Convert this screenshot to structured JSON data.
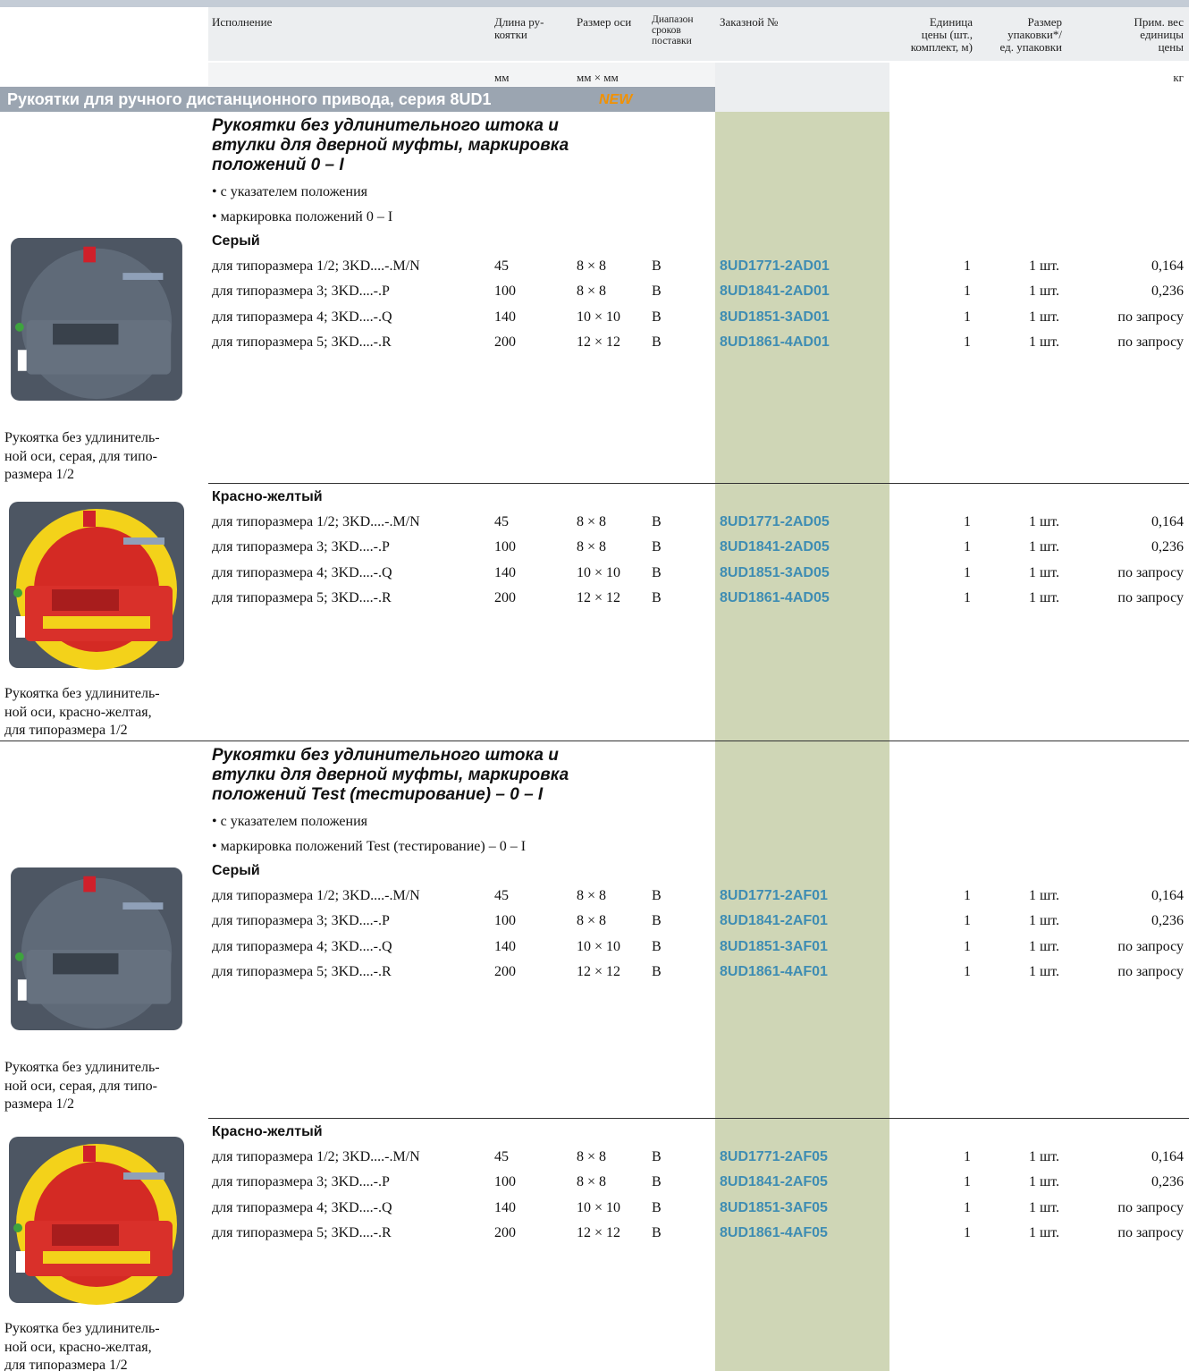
{
  "header": {
    "columns": [
      {
        "lines": [
          "Исполнение"
        ]
      },
      {
        "lines": [
          "Длина ру-",
          "коятки"
        ],
        "unit": "мм"
      },
      {
        "lines": [
          "Размер оси"
        ],
        "unit": "мм × мм"
      },
      {
        "lines": [
          "Диапазон",
          "сроков",
          "поставки"
        ]
      },
      {
        "lines": [
          "Заказной №"
        ]
      },
      {
        "lines": [
          "Единица",
          "цены (шт.,",
          "комплект, м)"
        ]
      },
      {
        "lines": [
          "Размер",
          "упаковки*/",
          "ед. упаковки"
        ]
      },
      {
        "lines": [
          "Прим. вес",
          "единицы",
          "цены"
        ],
        "unit": "кг"
      }
    ]
  },
  "section": {
    "title": "Рукоятки для ручного дистанционного привода, серия 8UD1",
    "badge": "NEW"
  },
  "groups": [
    {
      "title_lines": [
        "Рукоятки без удлинительного штока и",
        "втулки для дверной муфты, маркировка",
        "положений 0 – I"
      ],
      "bullets": [
        "• с указателем положения",
        "• маркировка положений 0 – I"
      ],
      "variants": [
        {
          "name": "Серый",
          "rows": [
            [
              "для типоразмера 1/2; 3KD....-.M/N",
              "45",
              "8 × 8",
              "B",
              "8UD1771-2AD01",
              "1",
              "1 шт.",
              "0,164"
            ],
            [
              "для типоразмера 3; 3KD....-.P",
              "100",
              "8 × 8",
              "B",
              "8UD1841-2AD01",
              "1",
              "1 шт.",
              "0,236"
            ],
            [
              "для типоразмера 4; 3KD....-.Q",
              "140",
              "10 × 10",
              "B",
              "8UD1851-3AD01",
              "1",
              "1 шт.",
              "по запросу"
            ],
            [
              "для типоразмера 5; 3KD....-.R",
              "200",
              "12 × 12",
              "B",
              "8UD1861-4AD01",
              "1",
              "1 шт.",
              "по запросу"
            ]
          ],
          "caption_lines": [
            "Рукоятка без удлинитель-",
            "ной оси, серая, для типо-",
            "размера 1/2"
          ]
        },
        {
          "name": "Красно-желтый",
          "rows": [
            [
              "для типоразмера 1/2; 3KD....-.M/N",
              "45",
              "8 × 8",
              "B",
              "8UD1771-2AD05",
              "1",
              "1 шт.",
              "0,164"
            ],
            [
              "для типоразмера 3; 3KD....-.P",
              "100",
              "8 × 8",
              "B",
              "8UD1841-2AD05",
              "1",
              "1 шт.",
              "0,236"
            ],
            [
              "для типоразмера 4; 3KD....-.Q",
              "140",
              "10 × 10",
              "B",
              "8UD1851-3AD05",
              "1",
              "1 шт.",
              "по запросу"
            ],
            [
              "для типоразмера 5; 3KD....-.R",
              "200",
              "12 × 12",
              "B",
              "8UD1861-4AD05",
              "1",
              "1 шт.",
              "по запросу"
            ]
          ],
          "caption_lines": [
            "Рукоятка без удлинитель-",
            "ной оси, красно-желтая,",
            "для типоразмера 1/2"
          ]
        }
      ]
    },
    {
      "title_lines": [
        "Рукоятки без удлинительного штока и",
        "втулки для дверной муфты, маркировка",
        "положений Test (тестирование) – 0 – I"
      ],
      "bullets": [
        "• с указателем положения",
        "• маркировка положений Test (тестирование) – 0 – I"
      ],
      "variants": [
        {
          "name": "Серый",
          "rows": [
            [
              "для типоразмера 1/2; 3KD....-.M/N",
              "45",
              "8 × 8",
              "B",
              "8UD1771-2AF01",
              "1",
              "1 шт.",
              "0,164"
            ],
            [
              "для типоразмера 3; 3KD....-.P",
              "100",
              "8 × 8",
              "B",
              "8UD1841-2AF01",
              "1",
              "1 шт.",
              "0,236"
            ],
            [
              "для типоразмера 4; 3KD....-.Q",
              "140",
              "10 × 10",
              "B",
              "8UD1851-3AF01",
              "1",
              "1 шт.",
              "по запросу"
            ],
            [
              "для типоразмера 5; 3KD....-.R",
              "200",
              "12 × 12",
              "B",
              "8UD1861-4AF01",
              "1",
              "1 шт.",
              "по запросу"
            ]
          ],
          "caption_lines": [
            "Рукоятка без удлинитель-",
            "ной оси, серая, для типо-",
            "размера 1/2"
          ]
        },
        {
          "name": "Красно-желтый",
          "rows": [
            [
              "для типоразмера 1/2; 3KD....-.M/N",
              "45",
              "8 × 8",
              "B",
              "8UD1771-2AF05",
              "1",
              "1 шт.",
              "0,164"
            ],
            [
              "для типоразмера 3; 3KD....-.P",
              "100",
              "8 × 8",
              "B",
              "8UD1841-2AF05",
              "1",
              "1 шт.",
              "0,236"
            ],
            [
              "для типоразмера 4; 3KD....-.Q",
              "140",
              "10 × 10",
              "B",
              "8UD1851-3AF05",
              "1",
              "1 шт.",
              "по запросу"
            ],
            [
              "для типоразмера 5; 3KD....-.R",
              "200",
              "12 × 12",
              "B",
              "8UD1861-4AF05",
              "1",
              "1 шт.",
              "по запросу"
            ]
          ],
          "caption_lines": [
            "Рукоятка без удлинитель-",
            "ной оси, красно-желтая,",
            "для типоразмера 1/2"
          ]
        }
      ]
    }
  ]
}
